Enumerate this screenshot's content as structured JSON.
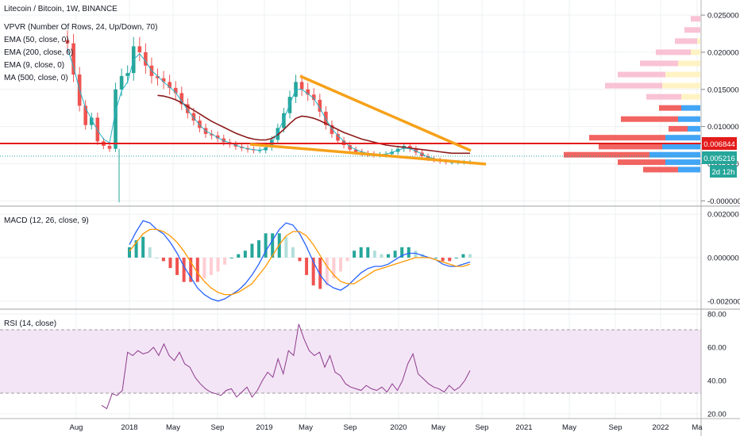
{
  "colors": {
    "up": "#26a69a",
    "down": "#ef5350",
    "ema50": "#cf1f1f",
    "ema200": "#8b1a1a",
    "ema9": "#26b3c7",
    "wedge": "#f6a11a",
    "hline": "#e31b1b",
    "last_price": "#26a69a",
    "macd": "#2962ff",
    "signal": "#ff9800",
    "rsi": "#9c27b0",
    "rsi_band": "#f3e5f5",
    "vpvr_up": "#42a5f5",
    "vpvr_down": "#ef5350",
    "vpvr_up_va": "#fff3c4",
    "vpvr_down_va": "#f8bbd0"
  },
  "legend": {
    "symbol": "Litecoin / Bitcoin, 1W, BINANCE",
    "vpvr": "VPVR (Number Of Rows, 24, Up/Down, 70)",
    "ema50": "EMA (50, close, 0)",
    "ema200": "EMA (200, close, 0)",
    "ema9": "EMA (9, close, 0)",
    "ma500": "MA (500, close, 0)",
    "macd": "MACD (12, 26, close, 9)",
    "rsi": "RSI (14, close)"
  },
  "price_labels": {
    "hline": "0.006844",
    "last": "0.005216",
    "countdown": "2d 12h"
  },
  "chart_data": [
    {
      "type": "candlestick",
      "title": "Litecoin / Bitcoin, 1W, BINANCE",
      "x_ticks": [
        "Aug",
        "2018",
        "May",
        "Sep",
        "2019",
        "May",
        "Sep",
        "2020",
        "May",
        "Sep",
        "2021",
        "May",
        "Sep",
        "2022",
        "Ma"
      ],
      "y_ticks": [
        "0.025000",
        "0.020000",
        "0.015000",
        "0.010000",
        "0.005000",
        "-0.000000"
      ],
      "ylim": [
        -0.0005,
        0.0265
      ],
      "horizontal_line": 0.006844,
      "last_price": 0.005216,
      "close_series": [
        0.0212,
        0.017,
        0.0128,
        0.0102,
        0.0112,
        0.008,
        0.0074,
        0.007,
        0.015,
        0.0168,
        0.0172,
        0.0208,
        0.02,
        0.0182,
        0.0168,
        0.0165,
        0.016,
        0.0152,
        0.0145,
        0.013,
        0.0118,
        0.0108,
        0.0098,
        0.009,
        0.0088,
        0.0084,
        0.0079,
        0.0076,
        0.0073,
        0.0071,
        0.0069,
        0.0068,
        0.0068,
        0.0072,
        0.0082,
        0.0098,
        0.0118,
        0.014,
        0.016,
        0.015,
        0.0143,
        0.0136,
        0.012,
        0.0102,
        0.009,
        0.0081,
        0.0075,
        0.0069,
        0.0066,
        0.0064,
        0.0063,
        0.0062,
        0.0062,
        0.0063,
        0.0066,
        0.007,
        0.0074,
        0.007,
        0.0065,
        0.006,
        0.0057,
        0.0055,
        0.0053,
        0.0052,
        0.0052,
        0.0052,
        0.0052,
        0.0052
      ],
      "ema9": [
        0.0205,
        0.018,
        0.015,
        0.0125,
        0.011,
        0.0095,
        0.0083,
        0.0078,
        0.012,
        0.0148,
        0.016,
        0.019,
        0.0198,
        0.0188,
        0.0175,
        0.0168,
        0.016,
        0.0153,
        0.0146,
        0.0134,
        0.0122,
        0.0112,
        0.0102,
        0.0094,
        0.009,
        0.0085,
        0.0081,
        0.0078,
        0.0075,
        0.0072,
        0.007,
        0.0069,
        0.0068,
        0.007,
        0.0078,
        0.0092,
        0.011,
        0.013,
        0.015,
        0.015,
        0.0144,
        0.0138,
        0.0125,
        0.011,
        0.0097,
        0.0088,
        0.008,
        0.0073,
        0.0069,
        0.0066,
        0.0064,
        0.0063,
        0.0062,
        0.0063,
        0.0065,
        0.0068,
        0.0071,
        0.007,
        0.0067,
        0.0063,
        0.0059,
        0.0057,
        0.0055,
        0.0054,
        0.0053,
        0.0053,
        0.0052,
        0.0052
      ],
      "ema50": [
        null,
        null,
        null,
        null,
        null,
        null,
        null,
        null,
        null,
        null,
        null,
        null,
        null,
        null,
        null,
        0.0142,
        0.0141,
        0.0139,
        0.0136,
        0.0132,
        0.0127,
        0.0122,
        0.0117,
        0.0112,
        0.0107,
        0.0103,
        0.0099,
        0.0095,
        0.0091,
        0.0088,
        0.0085,
        0.0083,
        0.0082,
        0.0082,
        0.0084,
        0.0089,
        0.0096,
        0.0104,
        0.0111,
        0.0114,
        0.0113,
        0.0111,
        0.0108,
        0.0104,
        0.01,
        0.0096,
        0.0092,
        0.0089,
        0.0086,
        0.0083,
        0.0081,
        0.0079,
        0.0077,
        0.0075,
        0.0074,
        0.0073,
        0.0072,
        0.0071,
        0.007,
        0.0069,
        0.0068,
        0.0067,
        0.0066,
        0.0065,
        0.0064,
        0.0064,
        0.0064,
        0.0064
      ],
      "wedge_upper": [
        [
          0.02,
          0.0168
        ],
        [
          0.92,
          0.0065
        ]
      ],
      "wedge_lower": [
        [
          0.03,
          0.007
        ],
        [
          0.99,
          0.0039
        ]
      ],
      "vpvr_rows": [
        {
          "price": 0.0245,
          "up": 0.0,
          "down": 0.15
        },
        {
          "price": 0.023,
          "up": 0.0,
          "down": 0.25
        },
        {
          "price": 0.0215,
          "up": 0.05,
          "down": 0.35
        },
        {
          "price": 0.02,
          "up": 0.15,
          "down": 0.55
        },
        {
          "price": 0.0185,
          "up": 0.35,
          "down": 0.6
        },
        {
          "price": 0.017,
          "up": 0.55,
          "down": 0.75
        },
        {
          "price": 0.0155,
          "up": 0.6,
          "down": 0.9
        },
        {
          "price": 0.014,
          "up": 0.3,
          "down": 0.55
        },
        {
          "price": 0.0125,
          "up": 0.3,
          "down": 0.35
        },
        {
          "price": 0.011,
          "up": 0.35,
          "down": 0.9
        },
        {
          "price": 0.0097,
          "up": 0.2,
          "down": 0.3
        },
        {
          "price": 0.0085,
          "up": 0.55,
          "down": 1.2
        },
        {
          "price": 0.0073,
          "up": 0.6,
          "down": 1.0
        },
        {
          "price": 0.0062,
          "up": 0.8,
          "down": 1.35
        },
        {
          "price": 0.0052,
          "up": 0.55,
          "down": 0.75
        },
        {
          "price": 0.0042,
          "up": 0.35,
          "down": 0.55
        }
      ]
    },
    {
      "type": "line",
      "title": "MACD (12, 26, close, 9)",
      "y_ticks": [
        "0.002000",
        "0.000000",
        "-0.002000"
      ],
      "ylim": [
        -0.0023,
        0.0023
      ],
      "series": [
        {
          "name": "MACD",
          "values": [
            0.0006,
            0.0012,
            0.0017,
            0.0016,
            0.0013,
            0.0011,
            0.0007,
            0.0002,
            -0.0004,
            -0.0009,
            -0.0014,
            -0.0017,
            -0.0019,
            -0.002,
            -0.0019,
            -0.0017,
            -0.0015,
            -0.0012,
            -0.0008,
            -0.0003,
            0.0003,
            0.0008,
            0.0013,
            0.0016,
            0.0015,
            0.0011,
            0.0005,
            -0.0002,
            -0.0008,
            -0.0012,
            -0.0014,
            -0.0015,
            -0.0013,
            -0.001,
            -0.0007,
            -0.0005,
            -0.0004,
            -0.0004,
            -0.0003,
            -0.0001,
            0.0001,
            0.0002,
            0.0002,
            0.0001,
            0.0,
            -0.0001,
            -0.0003,
            -0.0004,
            -0.0004,
            -0.0003,
            -0.0002
          ]
        },
        {
          "name": "Signal",
          "values": [
            0.0003,
            0.0007,
            0.0011,
            0.0013,
            0.0013,
            0.0012,
            0.001,
            0.0007,
            0.0003,
            -0.0002,
            -0.0007,
            -0.0011,
            -0.0014,
            -0.0016,
            -0.0017,
            -0.0017,
            -0.0016,
            -0.0014,
            -0.0012,
            -0.0008,
            -0.0004,
            0.0001,
            0.0006,
            0.001,
            0.0012,
            0.0012,
            0.001,
            0.0006,
            0.0001,
            -0.0004,
            -0.0008,
            -0.0011,
            -0.0012,
            -0.0012,
            -0.001,
            -0.0008,
            -0.0006,
            -0.0005,
            -0.0004,
            -0.0003,
            -0.0002,
            -0.0001,
            0.0,
            0.0,
            0.0,
            -0.0001,
            -0.0002,
            -0.0003,
            -0.0004,
            -0.0004,
            -0.0003
          ]
        }
      ]
    },
    {
      "type": "line",
      "title": "RSI (14, close)",
      "y_ticks": [
        "80.00",
        "60.00",
        "40.00",
        "20.00"
      ],
      "ylim": [
        18,
        82
      ],
      "band": [
        30,
        70
      ],
      "series": [
        {
          "name": "RSI",
          "values": [
            25,
            23,
            32,
            31,
            34,
            57,
            55,
            58,
            56,
            57,
            60,
            55,
            62,
            55,
            52,
            57,
            50,
            48,
            42,
            38,
            35,
            33,
            32,
            31,
            34,
            35,
            30,
            33,
            36,
            30,
            34,
            40,
            45,
            42,
            53,
            44,
            58,
            55,
            74,
            65,
            58,
            55,
            57,
            48,
            55,
            45,
            43,
            38,
            36,
            35,
            34,
            37,
            35,
            34,
            36,
            33,
            38,
            34,
            40,
            50,
            56,
            44,
            41,
            38,
            36,
            35,
            33,
            37,
            34,
            36,
            40,
            46
          ]
        }
      ]
    }
  ]
}
